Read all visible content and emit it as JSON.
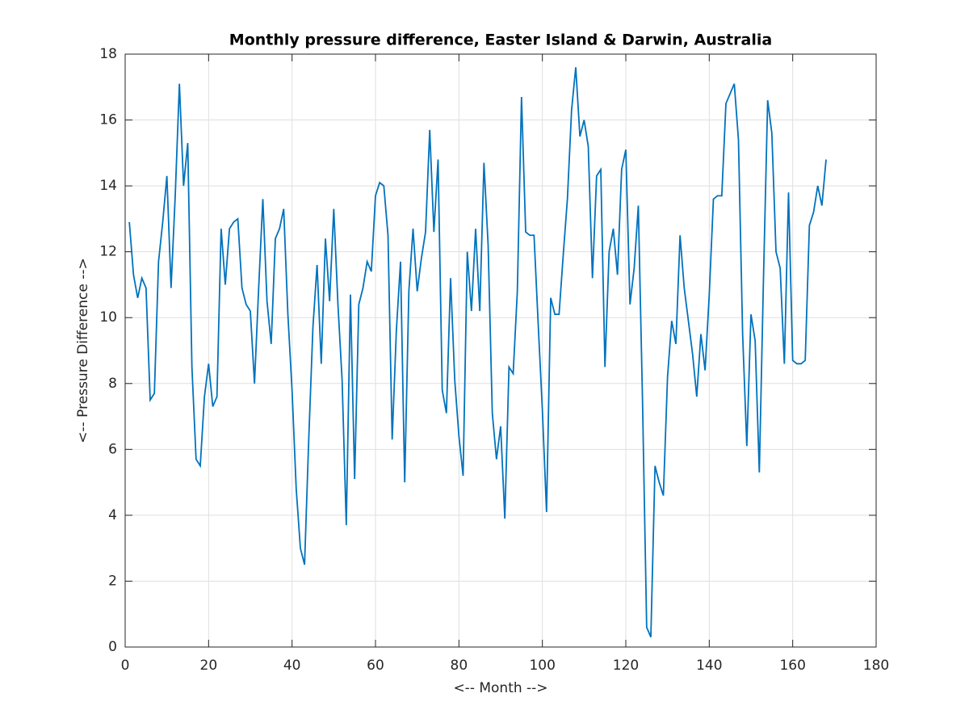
{
  "chart_data": {
    "type": "line",
    "title": "Monthly pressure difference, Easter Island & Darwin, Australia",
    "x_label": "<-- Month -->",
    "y_label": "<-- Pressure Difference -->",
    "x": [
      1,
      2,
      3,
      4,
      5,
      6,
      7,
      8,
      9,
      10,
      11,
      12,
      13,
      14,
      15,
      16,
      17,
      18,
      19,
      20,
      21,
      22,
      23,
      24,
      25,
      26,
      27,
      28,
      29,
      30,
      31,
      32,
      33,
      34,
      35,
      36,
      37,
      38,
      39,
      40,
      41,
      42,
      43,
      44,
      45,
      46,
      47,
      48,
      49,
      50,
      51,
      52,
      53,
      54,
      55,
      56,
      57,
      58,
      59,
      60,
      61,
      62,
      63,
      64,
      65,
      66,
      67,
      68,
      69,
      70,
      71,
      72,
      73,
      74,
      75,
      76,
      77,
      78,
      79,
      80,
      81,
      82,
      83,
      84,
      85,
      86,
      87,
      88,
      89,
      90,
      91,
      92,
      93,
      94,
      95,
      96,
      97,
      98,
      99,
      100,
      101,
      102,
      103,
      104,
      105,
      106,
      107,
      108,
      109,
      110,
      111,
      112,
      113,
      114,
      115,
      116,
      117,
      118,
      119,
      120,
      121,
      122,
      123,
      124,
      125,
      126,
      127,
      128,
      129,
      130,
      131,
      132,
      133,
      134,
      135,
      136,
      137,
      138,
      139,
      140,
      141,
      142,
      143,
      144,
      145,
      146,
      147,
      148,
      149,
      150,
      151,
      152,
      153,
      154,
      155,
      156,
      157,
      158,
      159,
      160,
      161,
      162,
      163,
      164,
      165,
      166,
      167,
      168
    ],
    "series": [
      {
        "color": "#0072bd",
        "values": [
          12.9,
          11.3,
          10.6,
          11.2,
          10.9,
          7.5,
          7.7,
          11.7,
          12.9,
          14.3,
          10.9,
          13.7,
          17.1,
          14.0,
          15.3,
          8.5,
          5.7,
          5.5,
          7.6,
          8.6,
          7.3,
          7.6,
          12.7,
          11.0,
          12.7,
          12.9,
          13.0,
          10.9,
          10.4,
          10.2,
          8.0,
          10.9,
          13.6,
          10.5,
          9.2,
          12.4,
          12.7,
          13.3,
          10.1,
          7.8,
          4.8,
          3.0,
          2.5,
          6.3,
          9.7,
          11.6,
          8.6,
          12.4,
          10.5,
          13.3,
          10.4,
          8.1,
          3.7,
          10.7,
          5.1,
          10.4,
          10.9,
          11.7,
          11.4,
          13.7,
          14.1,
          14.0,
          12.5,
          6.3,
          9.6,
          11.7,
          5.0,
          10.8,
          12.7,
          10.8,
          11.8,
          12.6,
          15.7,
          12.6,
          14.8,
          7.8,
          7.1,
          11.2,
          8.1,
          6.4,
          5.2,
          12.0,
          10.2,
          12.7,
          10.2,
          14.7,
          12.2,
          7.1,
          5.7,
          6.7,
          3.9,
          8.5,
          8.3,
          10.8,
          16.7,
          12.6,
          12.5,
          12.5,
          9.8,
          7.2,
          4.1,
          10.6,
          10.1,
          10.1,
          11.9,
          13.6,
          16.3,
          17.6,
          15.5,
          16.0,
          15.2,
          11.2,
          14.3,
          14.5,
          8.5,
          12.0,
          12.7,
          11.3,
          14.5,
          15.1,
          10.4,
          11.5,
          13.4,
          7.5,
          0.6,
          0.3,
          5.5,
          5.0,
          4.6,
          8.2,
          9.9,
          9.2,
          12.5,
          10.9,
          9.9,
          8.9,
          7.6,
          9.5,
          8.4,
          10.7,
          13.6,
          13.7,
          13.7,
          16.5,
          16.8,
          17.1,
          15.4,
          9.5,
          6.1,
          10.1,
          9.3,
          5.3,
          11.2,
          16.6,
          15.6,
          12.0,
          11.5,
          8.6,
          13.8,
          8.7,
          8.6,
          8.6,
          8.7,
          12.8,
          13.2,
          14.0,
          13.4,
          14.8
        ]
      }
    ],
    "xlim": [
      0,
      180
    ],
    "xticks": [
      0,
      20,
      40,
      60,
      80,
      100,
      120,
      140,
      160,
      180
    ],
    "ylim": [
      0,
      18
    ],
    "yticks": [
      0,
      2,
      4,
      6,
      8,
      10,
      12,
      14,
      16,
      18
    ],
    "grid": true
  }
}
